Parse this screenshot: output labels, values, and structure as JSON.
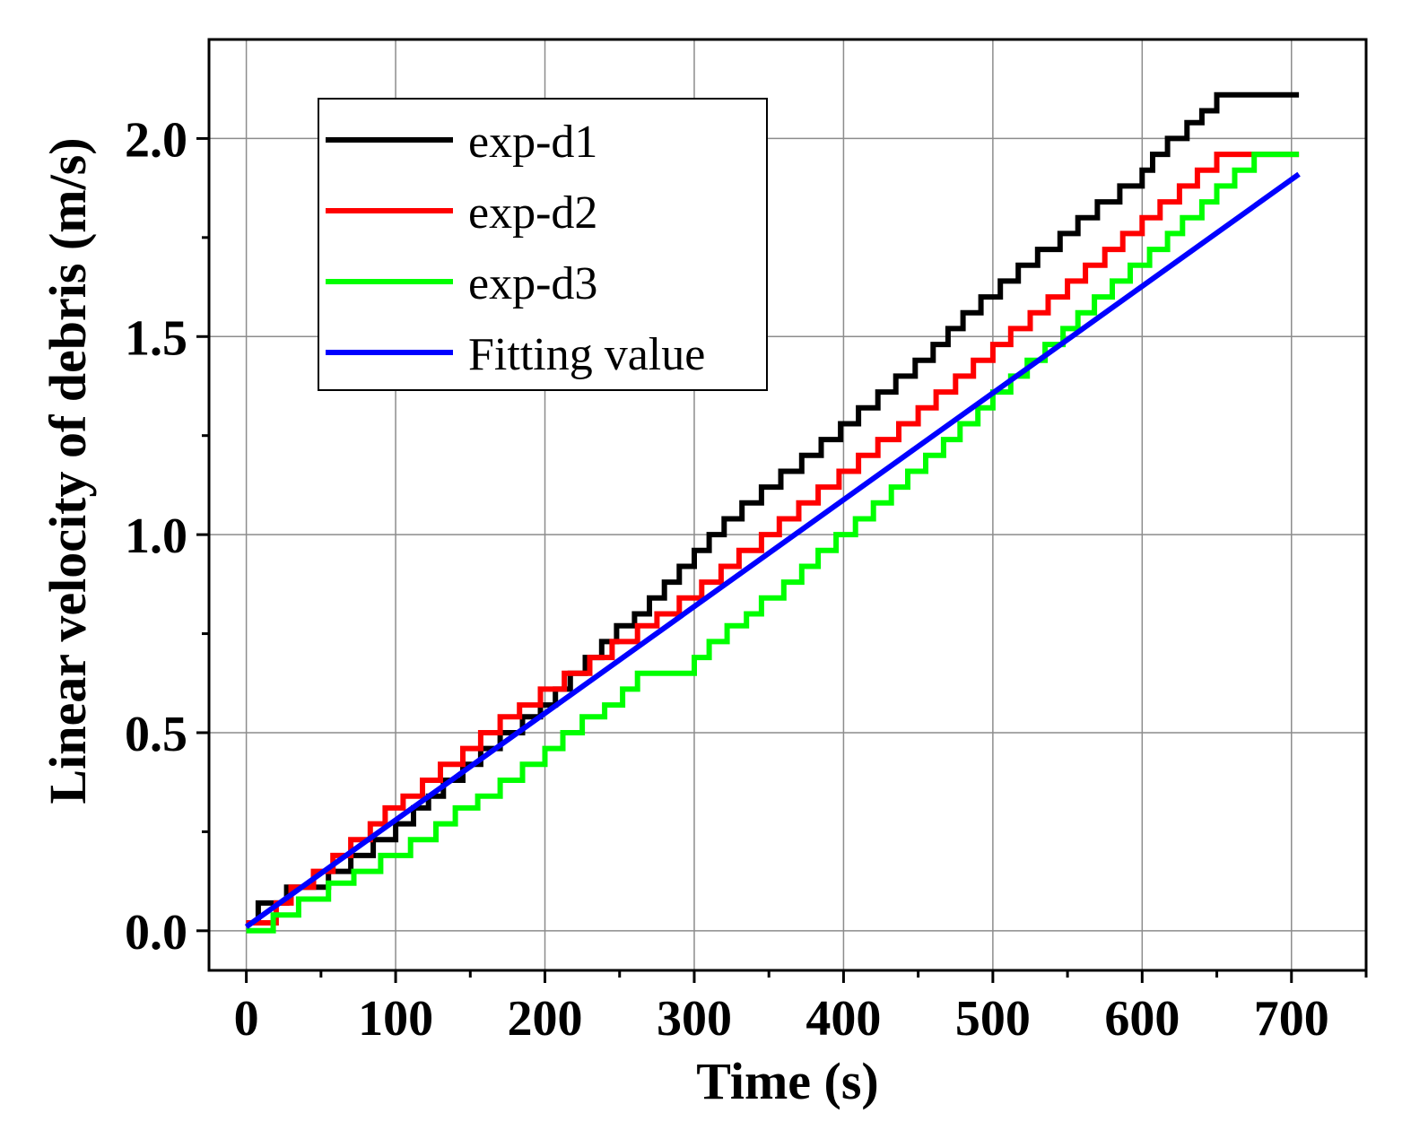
{
  "chart_data": {
    "type": "line",
    "title": "",
    "xlabel": "Time (s)",
    "ylabel": "Linear velocity of debris (m/s)",
    "xlim": [
      -25,
      750
    ],
    "ylim": [
      -0.1,
      2.25
    ],
    "x_ticks": [
      0,
      100,
      200,
      300,
      400,
      500,
      600,
      700
    ],
    "x_tick_labels": [
      "0",
      "100",
      "200",
      "300",
      "400",
      "500",
      "600",
      "700"
    ],
    "x_minor_ticks": [
      50,
      150,
      250,
      350,
      450,
      550,
      650,
      750
    ],
    "y_ticks": [
      0.0,
      0.5,
      1.0,
      1.5,
      2.0
    ],
    "y_tick_labels": [
      "0.0",
      "0.5",
      "1.0",
      "1.5",
      "2.0"
    ],
    "y_minor_ticks": [
      0.25,
      0.75,
      1.25,
      1.75
    ],
    "grid": true,
    "legend_position": "top-left",
    "series": [
      {
        "name": "exp-d1",
        "color": "#000000",
        "step": true,
        "x": [
          0,
          8,
          27,
          55,
          70,
          85,
          100,
          112,
          122,
          132,
          145,
          157,
          170,
          185,
          197,
          207,
          217,
          227,
          238,
          248,
          260,
          270,
          280,
          290,
          300,
          310,
          320,
          332,
          345,
          358,
          372,
          385,
          398,
          410,
          423,
          435,
          448,
          460,
          470,
          480,
          492,
          505,
          517,
          530,
          545,
          557,
          570,
          585,
          600,
          607,
          617,
          630,
          640,
          650,
          660,
          670,
          680,
          695,
          705
        ],
        "y": [
          0.02,
          0.07,
          0.11,
          0.15,
          0.19,
          0.23,
          0.27,
          0.31,
          0.34,
          0.38,
          0.42,
          0.46,
          0.5,
          0.54,
          0.57,
          0.61,
          0.65,
          0.69,
          0.73,
          0.77,
          0.8,
          0.84,
          0.88,
          0.92,
          0.96,
          1.0,
          1.04,
          1.08,
          1.12,
          1.16,
          1.2,
          1.24,
          1.28,
          1.32,
          1.36,
          1.4,
          1.44,
          1.48,
          1.52,
          1.56,
          1.6,
          1.64,
          1.68,
          1.72,
          1.76,
          1.8,
          1.84,
          1.88,
          1.92,
          1.96,
          2.0,
          2.04,
          2.07,
          2.11,
          2.11,
          2.11,
          2.11,
          2.11,
          2.11
        ]
      },
      {
        "name": "exp-d2",
        "color": "#ff0000",
        "step": true,
        "x": [
          0,
          20,
          30,
          45,
          58,
          70,
          83,
          93,
          105,
          118,
          130,
          145,
          157,
          170,
          183,
          197,
          213,
          230,
          245,
          262,
          275,
          290,
          305,
          318,
          330,
          345,
          357,
          370,
          383,
          397,
          410,
          423,
          437,
          450,
          462,
          475,
          487,
          500,
          512,
          525,
          537,
          550,
          562,
          575,
          587,
          600,
          612,
          625,
          637,
          650,
          662,
          675,
          700,
          705
        ],
        "y": [
          0.02,
          0.07,
          0.11,
          0.15,
          0.19,
          0.23,
          0.27,
          0.31,
          0.34,
          0.38,
          0.42,
          0.46,
          0.5,
          0.54,
          0.57,
          0.61,
          0.65,
          0.69,
          0.73,
          0.77,
          0.8,
          0.84,
          0.88,
          0.92,
          0.96,
          1.0,
          1.04,
          1.08,
          1.12,
          1.16,
          1.2,
          1.24,
          1.28,
          1.32,
          1.36,
          1.4,
          1.44,
          1.48,
          1.52,
          1.56,
          1.6,
          1.64,
          1.68,
          1.72,
          1.76,
          1.8,
          1.84,
          1.88,
          1.92,
          1.96,
          1.96,
          1.96,
          1.96,
          1.96
        ]
      },
      {
        "name": "exp-d3",
        "color": "#00ff00",
        "step": true,
        "x": [
          0,
          18,
          35,
          55,
          72,
          90,
          110,
          127,
          140,
          155,
          170,
          185,
          200,
          212,
          225,
          240,
          252,
          262,
          300,
          310,
          322,
          335,
          345,
          360,
          372,
          383,
          395,
          408,
          420,
          432,
          443,
          455,
          467,
          478,
          490,
          500,
          512,
          523,
          535,
          547,
          557,
          568,
          580,
          592,
          605,
          617,
          627,
          640,
          650,
          662,
          675,
          690,
          705
        ],
        "y": [
          0.0,
          0.04,
          0.08,
          0.12,
          0.15,
          0.19,
          0.23,
          0.27,
          0.31,
          0.34,
          0.38,
          0.42,
          0.46,
          0.5,
          0.54,
          0.57,
          0.61,
          0.65,
          0.69,
          0.73,
          0.77,
          0.8,
          0.84,
          0.88,
          0.92,
          0.96,
          1.0,
          1.04,
          1.08,
          1.12,
          1.16,
          1.2,
          1.24,
          1.28,
          1.32,
          1.36,
          1.4,
          1.44,
          1.48,
          1.52,
          1.56,
          1.6,
          1.64,
          1.68,
          1.72,
          1.76,
          1.8,
          1.84,
          1.88,
          1.92,
          1.96,
          1.96,
          1.96
        ]
      },
      {
        "name": "Fitting value",
        "color": "#0000ff",
        "step": false,
        "x": [
          0,
          705
        ],
        "y": [
          0.01,
          1.91
        ]
      }
    ]
  }
}
